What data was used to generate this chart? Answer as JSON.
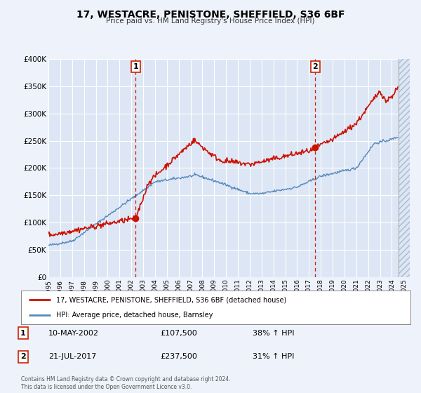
{
  "title": "17, WESTACRE, PENISTONE, SHEFFIELD, S36 6BF",
  "subtitle": "Price paid vs. HM Land Registry's House Price Index (HPI)",
  "ylim": [
    0,
    400000
  ],
  "xlim_start": 1995.0,
  "xlim_end": 2025.5,
  "background_color": "#eef2fb",
  "plot_bg_color": "#dde6f5",
  "grid_color": "#ffffff",
  "red_line_color": "#cc1100",
  "blue_line_color": "#5588bb",
  "marker1_date": 2002.36,
  "marker1_value": 107500,
  "marker2_date": 2017.54,
  "marker2_value": 237500,
  "legend_label_red": "17, WESTACRE, PENISTONE, SHEFFIELD, S36 6BF (detached house)",
  "legend_label_blue": "HPI: Average price, detached house, Barnsley",
  "annotation1_date": "10-MAY-2002",
  "annotation1_price": "£107,500",
  "annotation1_hpi": "38% ↑ HPI",
  "annotation2_date": "21-JUL-2017",
  "annotation2_price": "£237,500",
  "annotation2_hpi": "31% ↑ HPI",
  "footer": "Contains HM Land Registry data © Crown copyright and database right 2024.\nThis data is licensed under the Open Government Licence v3.0.",
  "yticks": [
    0,
    50000,
    100000,
    150000,
    200000,
    250000,
    300000,
    350000,
    400000
  ],
  "ytick_labels": [
    "£0",
    "£50K",
    "£100K",
    "£150K",
    "£200K",
    "£250K",
    "£300K",
    "£350K",
    "£400K"
  ],
  "hatch_start": 2024.58,
  "data_end": 2024.58
}
